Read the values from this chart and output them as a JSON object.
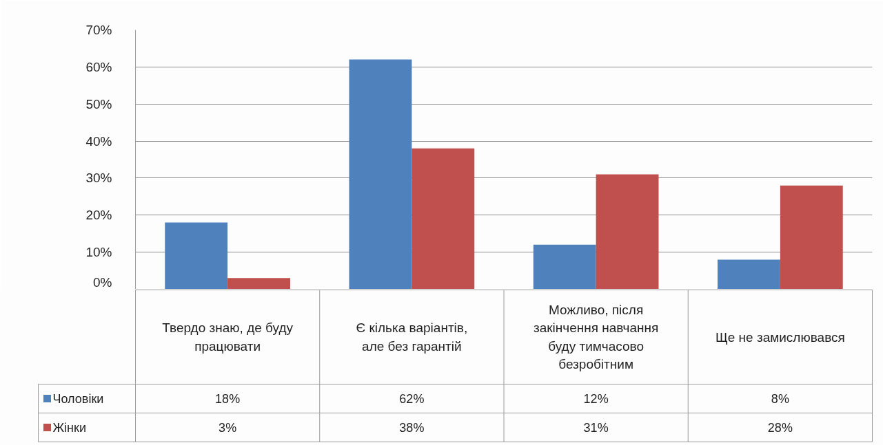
{
  "chart_data": {
    "type": "bar",
    "categories": [
      "Твердо знаю, де буду працювати",
      "Є кілька варіантів, але без гарантій",
      "Можливо, після закінчення навчання буду тимчасово безробітним",
      "Ще не замислювався"
    ],
    "series": [
      {
        "name": "Чоловіки",
        "color": "#4f81bd",
        "values": [
          18,
          62,
          12,
          8
        ],
        "value_labels": [
          "18%",
          "62%",
          "12%",
          "8%"
        ]
      },
      {
        "name": "Жінки",
        "color": "#c0504d",
        "values": [
          3,
          38,
          31,
          28
        ],
        "value_labels": [
          "3%",
          "38%",
          "31%",
          "28%"
        ]
      }
    ],
    "ylim": [
      0,
      70
    ],
    "yticks": [
      {
        "value": 0,
        "label": "0%"
      },
      {
        "value": 10,
        "label": "10%"
      },
      {
        "value": 20,
        "label": "20%"
      },
      {
        "value": 30,
        "label": "30%"
      },
      {
        "value": 40,
        "label": "40%"
      },
      {
        "value": 50,
        "label": "50%"
      },
      {
        "value": 60,
        "label": "60%"
      },
      {
        "value": 70,
        "label": "70%"
      }
    ],
    "grid": "y",
    "legend": "bottom"
  }
}
